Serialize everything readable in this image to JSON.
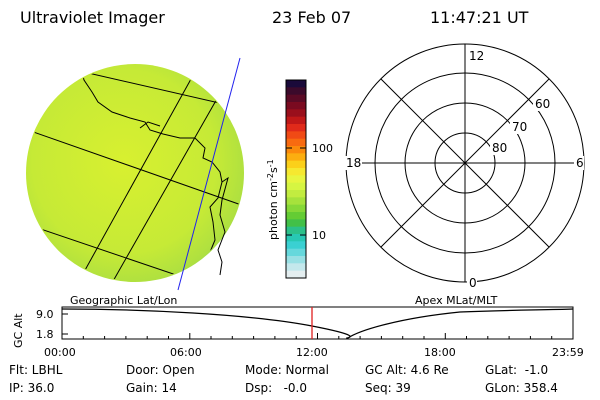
{
  "header": {
    "instrument": "Ultraviolet Imager",
    "date": "23 Feb 07",
    "time": "11:47:21 UT"
  },
  "colorbar": {
    "label": "photon cm",
    "label_sup1": "-2",
    "label_mid": "s",
    "label_sup2": "-1",
    "ticks": [
      "100",
      "10"
    ],
    "colors_top_to_bottom": [
      "#1a0a3a",
      "#3b0a2b",
      "#5a0a25",
      "#7a0a20",
      "#9a0f1c",
      "#c01818",
      "#e02a1a",
      "#f04a15",
      "#f86a10",
      "#fb8a0c",
      "#fcae10",
      "#fbd01a",
      "#f6e830",
      "#e8f540",
      "#d6f542",
      "#c2ec40",
      "#a6e23c",
      "#86d838",
      "#64cc34",
      "#42c048",
      "#2cc08a",
      "#28c8b4",
      "#3ad0d2",
      "#66d8dc",
      "#98e0e4",
      "#c4e8ec",
      "#e4eef0"
    ]
  },
  "panels": {
    "left_caption": "Geographic Lat/Lon",
    "right_caption": "Apex MLat/MLT",
    "polar_labels": {
      "mlt_top": "12",
      "mlt_right": "6",
      "mlt_bottom": "0",
      "mlt_left": "18",
      "lat_60": "60",
      "lat_70": "70",
      "lat_80": "80"
    }
  },
  "altitude_plot": {
    "ylabel": "GC Alt",
    "yticks": [
      "9.0",
      "1.8"
    ],
    "xticks": [
      "00:00",
      "06:00",
      "12:00",
      "18:00",
      "23:59"
    ],
    "marker_time": "11:47"
  },
  "info": {
    "flt": "Flt: LBHL",
    "ip": "IP: 36.0",
    "door": "Door: Open",
    "gain": "Gain: 14",
    "mode": "Mode: Normal",
    "dsp": "Dsp:   -0.0",
    "gcalt": "GC Alt: 4.6 Re",
    "seq": "Seq: 39",
    "glat": "GLat:  -1.0",
    "glon": "GLon: 358.4"
  }
}
